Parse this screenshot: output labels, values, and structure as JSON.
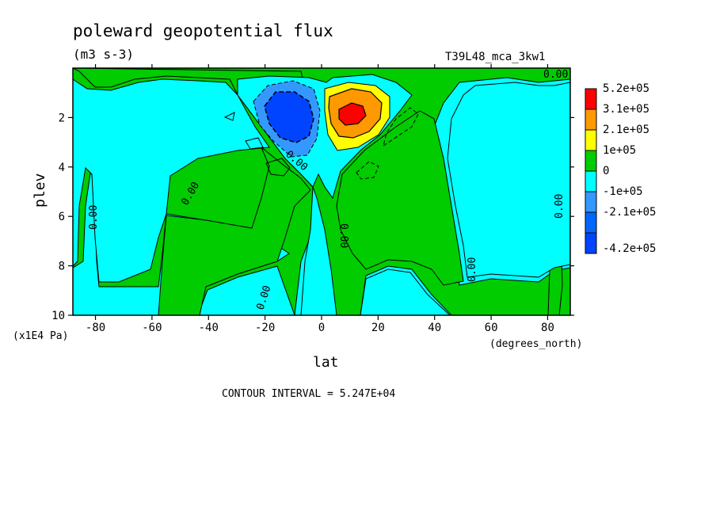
{
  "chart_data": {
    "type": "heatmap",
    "title": "poleward geopotential flux",
    "units": "(m3 s-3)",
    "run_label": "T39L48_mca_3kw1",
    "xlabel": "lat",
    "xunit": "(degrees_north)",
    "ylabel": "plev",
    "yunit": "(x1E4 Pa)",
    "xlim": [
      -88,
      88
    ],
    "ylim": [
      10,
      0
    ],
    "x_ticks": [
      -80,
      -60,
      -40,
      -20,
      0,
      20,
      40,
      60,
      80
    ],
    "y_ticks": [
      2,
      4,
      6,
      8,
      10
    ],
    "contour_interval_text": "CONTOUR INTERVAL = 5.247E+04",
    "contour_labels": [
      "0.00",
      "0.00",
      "0.00",
      "0.00",
      "0.00",
      "0.00",
      "0.00",
      "0.00"
    ],
    "colorbar": {
      "levels": [
        "5.2e+05",
        "3.1e+05",
        "2.1e+05",
        "1e+05",
        "0",
        "-1e+05",
        "-2.1e+05",
        "-4.2e+05"
      ],
      "colors": [
        "#ff0000",
        "#ff9900",
        "#ffff00",
        "#00cc00",
        "#00ffff",
        "#3399ff",
        "#0066ff",
        "#0044ff"
      ]
    },
    "features": [
      {
        "name": "positive-maximum",
        "lat": 10,
        "plev": 2,
        "approx_value": 520000.0
      },
      {
        "name": "negative-minimum",
        "lat": -12,
        "plev": 2,
        "approx_value": -420000.0
      }
    ]
  }
}
